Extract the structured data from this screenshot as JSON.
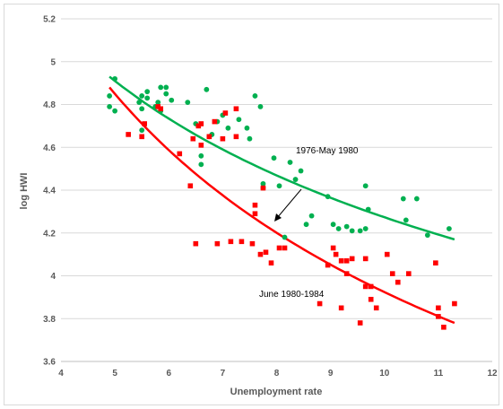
{
  "chart_data": {
    "type": "scatter",
    "title": "",
    "xlabel": "Unemployment rate",
    "ylabel": "log HWI",
    "xlim": [
      4,
      12
    ],
    "ylim": [
      3.6,
      5.2
    ],
    "x_ticks": [
      "4",
      "5",
      "6",
      "7",
      "8",
      "9",
      "10",
      "11",
      "12"
    ],
    "y_ticks": [
      "3.6",
      "3.8",
      "4",
      "4.2",
      "4.4",
      "4.6",
      "4.8",
      "5",
      "5.2"
    ],
    "grid": "horizontal",
    "series": [
      {
        "name": "1976-May 1980",
        "color": "#00b050",
        "marker": "circle",
        "points": [
          [
            4.9,
            4.79
          ],
          [
            4.9,
            4.84
          ],
          [
            5.0,
            4.77
          ],
          [
            5.0,
            4.92
          ],
          [
            5.45,
            4.81
          ],
          [
            5.5,
            4.78
          ],
          [
            5.5,
            4.84
          ],
          [
            5.6,
            4.86
          ],
          [
            5.6,
            4.83
          ],
          [
            5.5,
            4.68
          ],
          [
            5.75,
            4.79
          ],
          [
            5.8,
            4.81
          ],
          [
            5.85,
            4.88
          ],
          [
            5.85,
            4.77
          ],
          [
            5.95,
            4.88
          ],
          [
            5.95,
            4.85
          ],
          [
            6.05,
            4.82
          ],
          [
            6.35,
            4.81
          ],
          [
            6.5,
            4.71
          ],
          [
            6.6,
            4.56
          ],
          [
            6.6,
            4.52
          ],
          [
            6.7,
            4.87
          ],
          [
            6.75,
            4.65
          ],
          [
            6.8,
            4.66
          ],
          [
            6.9,
            4.72
          ],
          [
            7.0,
            4.75
          ],
          [
            7.1,
            4.69
          ],
          [
            7.3,
            4.73
          ],
          [
            7.45,
            4.69
          ],
          [
            7.5,
            4.64
          ],
          [
            7.6,
            4.84
          ],
          [
            7.7,
            4.79
          ],
          [
            7.75,
            4.43
          ],
          [
            7.75,
            4.41
          ],
          [
            7.95,
            4.55
          ],
          [
            8.05,
            4.42
          ],
          [
            8.15,
            4.18
          ],
          [
            8.25,
            4.53
          ],
          [
            8.35,
            4.45
          ],
          [
            8.45,
            4.49
          ],
          [
            8.55,
            4.24
          ],
          [
            8.65,
            4.28
          ],
          [
            8.95,
            4.37
          ],
          [
            9.05,
            4.24
          ],
          [
            9.15,
            4.22
          ],
          [
            9.3,
            4.23
          ],
          [
            9.4,
            4.21
          ],
          [
            9.55,
            4.21
          ],
          [
            9.65,
            4.22
          ],
          [
            9.65,
            4.42
          ],
          [
            9.7,
            4.31
          ],
          [
            10.35,
            4.36
          ],
          [
            10.4,
            4.26
          ],
          [
            10.6,
            4.36
          ],
          [
            10.8,
            4.19
          ],
          [
            11.2,
            4.22
          ]
        ],
        "trend": {
          "type": "power",
          "x_range": [
            4.9,
            11.3
          ],
          "y_start": 4.93,
          "y_end": 4.17
        }
      },
      {
        "name": "June 1980-1984",
        "color": "#ff0000",
        "marker": "square",
        "points": [
          [
            5.25,
            4.66
          ],
          [
            5.5,
            4.65
          ],
          [
            5.55,
            4.71
          ],
          [
            5.8,
            4.79
          ],
          [
            5.85,
            4.78
          ],
          [
            6.2,
            4.57
          ],
          [
            6.4,
            4.42
          ],
          [
            6.45,
            4.64
          ],
          [
            6.5,
            4.15
          ],
          [
            6.55,
            4.7
          ],
          [
            6.6,
            4.61
          ],
          [
            6.6,
            4.71
          ],
          [
            6.75,
            4.65
          ],
          [
            6.85,
            4.72
          ],
          [
            6.9,
            4.15
          ],
          [
            7.0,
            4.64
          ],
          [
            7.05,
            4.76
          ],
          [
            7.15,
            4.16
          ],
          [
            7.25,
            4.78
          ],
          [
            7.25,
            4.65
          ],
          [
            7.35,
            4.16
          ],
          [
            7.55,
            4.15
          ],
          [
            7.6,
            4.33
          ],
          [
            7.6,
            4.29
          ],
          [
            7.7,
            4.1
          ],
          [
            7.75,
            4.41
          ],
          [
            7.8,
            4.11
          ],
          [
            7.9,
            4.06
          ],
          [
            8.05,
            4.13
          ],
          [
            8.15,
            4.13
          ],
          [
            8.8,
            3.87
          ],
          [
            8.95,
            4.05
          ],
          [
            9.05,
            4.13
          ],
          [
            9.1,
            4.1
          ],
          [
            9.2,
            4.07
          ],
          [
            9.2,
            3.85
          ],
          [
            9.3,
            4.01
          ],
          [
            9.3,
            4.07
          ],
          [
            9.4,
            4.08
          ],
          [
            9.55,
            3.78
          ],
          [
            9.65,
            4.08
          ],
          [
            9.65,
            3.95
          ],
          [
            9.75,
            3.89
          ],
          [
            9.75,
            3.95
          ],
          [
            9.85,
            3.85
          ],
          [
            10.05,
            4.1
          ],
          [
            10.15,
            4.01
          ],
          [
            10.25,
            3.97
          ],
          [
            10.45,
            4.01
          ],
          [
            10.95,
            4.06
          ],
          [
            11.0,
            3.85
          ],
          [
            11.0,
            3.81
          ],
          [
            11.1,
            3.76
          ],
          [
            11.3,
            3.87
          ]
        ],
        "trend": {
          "type": "power",
          "x_range": [
            4.9,
            11.3
          ],
          "y_start": 4.88,
          "y_end": 3.78
        }
      }
    ],
    "annotations": [
      {
        "text": "1976-May 1980",
        "series": 0
      },
      {
        "text": "June 1980-1984",
        "series": 1,
        "arrow_to": [
          7.9,
          4.24
        ]
      }
    ]
  }
}
